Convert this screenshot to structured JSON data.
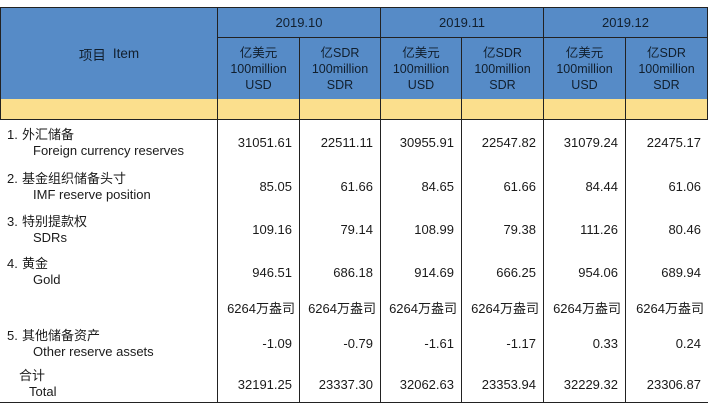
{
  "colors": {
    "header_blue": "#568BC7",
    "band_yellow": "#FBDF8D",
    "border": "#222222",
    "text": "#1a1a1a"
  },
  "table": {
    "item_header_zh": "项目",
    "item_header_en": "Item",
    "periods": [
      "2019.10",
      "2019.11",
      "2019.12"
    ],
    "unit_usd": {
      "line1": "亿美元",
      "line2": "100million",
      "line3": "USD"
    },
    "unit_sdr": {
      "line1": "亿SDR",
      "line2": "100million",
      "line3": "SDR"
    },
    "rows": [
      {
        "no": "1.",
        "zh": "外汇储备",
        "en": "Foreign currency reserves",
        "values": [
          "31051.61",
          "22511.11",
          "30955.91",
          "22547.82",
          "31079.24",
          "22475.17"
        ]
      },
      {
        "no": "2.",
        "zh": "基金组织储备头寸",
        "en": "IMF reserve position",
        "values": [
          "85.05",
          "61.66",
          "84.65",
          "61.66",
          "84.44",
          "61.06"
        ]
      },
      {
        "no": "3.",
        "zh": "特别提款权",
        "en": "SDRs",
        "values": [
          "109.16",
          "79.14",
          "108.99",
          "79.38",
          "111.26",
          "80.46"
        ]
      },
      {
        "no": "4.",
        "zh": "黄金",
        "en": "Gold",
        "values": [
          "946.51",
          "686.18",
          "914.69",
          "666.25",
          "954.06",
          "689.94"
        ]
      },
      {
        "no": "5.",
        "zh": "其他储备资产",
        "en": "Other reserve assets",
        "values": [
          "-1.09",
          "-0.79",
          "-1.61",
          "-1.17",
          "0.33",
          "0.24"
        ]
      }
    ],
    "gold_volume": {
      "values": [
        "6264万盎司",
        "6264万盎司",
        "6264万盎司",
        "6264万盎司",
        "6264万盎司",
        "6264万盎司"
      ]
    },
    "total": {
      "zh": "合计",
      "en": "Total",
      "values": [
        "32191.25",
        "23337.30",
        "32062.63",
        "23353.94",
        "32229.32",
        "23306.87"
      ]
    }
  }
}
